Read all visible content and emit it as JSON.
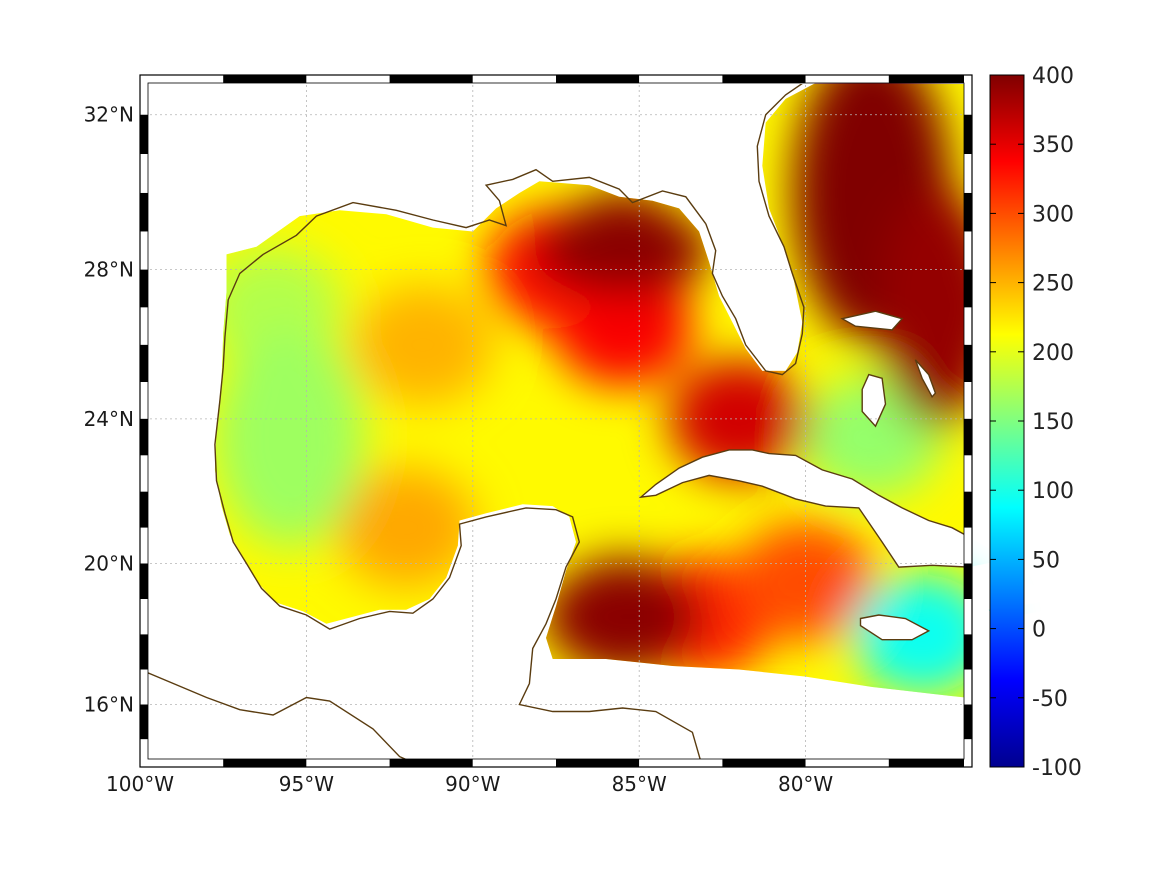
{
  "map": {
    "projection": "mercator",
    "lon_range": [
      -100,
      -75
    ],
    "lat_range": [
      14.2,
      33
    ],
    "longitude_labels": [
      {
        "lon": -100,
        "label": "100°W"
      },
      {
        "lon": -95,
        "label": "95°W"
      },
      {
        "lon": -90,
        "label": "90°W"
      },
      {
        "lon": -85,
        "label": "85°W"
      },
      {
        "lon": -80,
        "label": "80°W"
      }
    ],
    "latitude_labels": [
      {
        "lat": 32,
        "label": "32°N"
      },
      {
        "lat": 28,
        "label": "28°N"
      },
      {
        "lat": 24,
        "label": "24°N"
      },
      {
        "lat": 20,
        "label": "20°N"
      },
      {
        "lat": 16,
        "label": "16°N"
      }
    ],
    "grid": true,
    "coastline_color": "#5a3c10",
    "frame_style": "alternating black-white border"
  },
  "colorbar": {
    "placement": "right",
    "range": [
      -100,
      400
    ],
    "ticks": [
      "400",
      "350",
      "300",
      "250",
      "200",
      "150",
      "100",
      "50",
      "0",
      "-50",
      "-100"
    ],
    "colormap": "jet"
  },
  "field": {
    "background_level": 215,
    "regions": [
      {
        "name": "atlantic-gulf-stream",
        "lon": -78.0,
        "lat": 30.0,
        "value": 400
      },
      {
        "name": "atlantic-east",
        "lon": -76.0,
        "lat": 27.0,
        "value": 390
      },
      {
        "name": "loop-current-north",
        "lon": -85.5,
        "lat": 28.5,
        "value": 395
      },
      {
        "name": "loop-current-core",
        "lon": -85.5,
        "lat": 26.5,
        "value": 340
      },
      {
        "name": "loop-current-west",
        "lon": -87.5,
        "lat": 28.0,
        "value": 330
      },
      {
        "name": "caribbean-yucatan",
        "lon": -85.5,
        "lat": 18.5,
        "value": 395
      },
      {
        "name": "caribbean-east",
        "lon": -83.0,
        "lat": 18.5,
        "value": 320
      },
      {
        "name": "cayman-eddy",
        "lon": -80.0,
        "lat": 19.5,
        "value": 300
      },
      {
        "name": "west-gulf-basin",
        "lon": -95.5,
        "lat": 23.5,
        "value": 165
      },
      {
        "name": "west-gulf-north",
        "lon": -96.0,
        "lat": 27.0,
        "value": 175
      },
      {
        "name": "central-gulf",
        "lon": -91.5,
        "lat": 26.0,
        "value": 250
      },
      {
        "name": "west-eddy",
        "lon": -92.0,
        "lat": 21.0,
        "value": 255
      },
      {
        "name": "windward-passage",
        "lon": -76.5,
        "lat": 18.0,
        "value": 95
      },
      {
        "name": "bahamas-banks",
        "lon": -78.0,
        "lat": 23.5,
        "value": 160
      },
      {
        "name": "straits-eddy",
        "lon": -82.0,
        "lat": 24.0,
        "value": 360
      }
    ]
  }
}
